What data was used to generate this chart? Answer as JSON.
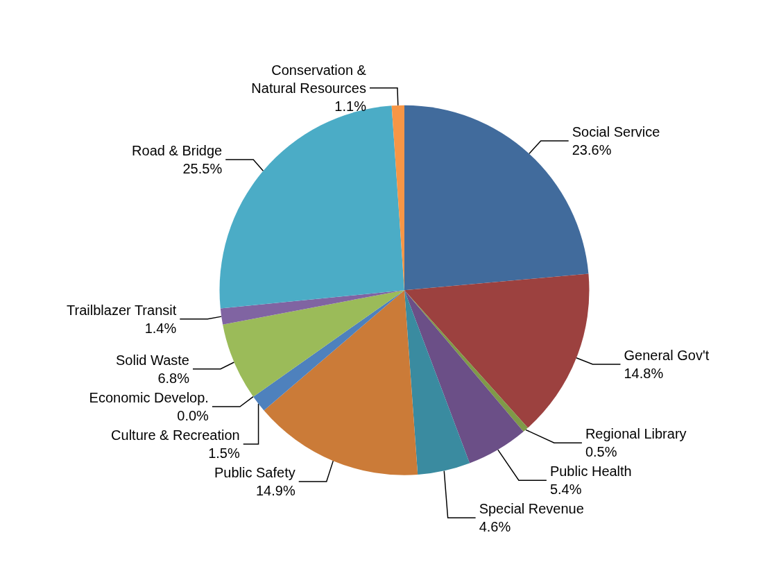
{
  "chart_data": {
    "type": "pie",
    "categories": [
      "Social Service",
      "General Gov't",
      "Regional Library",
      "Public Health",
      "Special Revenue",
      "Public Safety",
      "Culture & Recreation",
      "Economic Develop.",
      "Solid Waste",
      "Trailblazer Transit",
      "Road & Bridge",
      "Conservation &\nNatural Resources"
    ],
    "values": [
      23.6,
      14.8,
      0.5,
      5.4,
      4.6,
      14.9,
      1.5,
      0.0,
      6.8,
      1.4,
      25.5,
      1.1
    ],
    "value_labels": [
      "23.6%",
      "14.8%",
      "0.5%",
      "5.4%",
      "4.6%",
      "14.9%",
      "1.5%",
      "0.0%",
      "6.8%",
      "1.4%",
      "25.5%",
      "1.1%"
    ],
    "colors": [
      "#416b9c",
      "#9c413f",
      "#7f9a48",
      "#6b4f87",
      "#3a8ba0",
      "#cb7b38",
      "#4e81bd",
      "#c0504d",
      "#9bbb59",
      "#8064a2",
      "#4bacc6",
      "#f79646"
    ]
  }
}
